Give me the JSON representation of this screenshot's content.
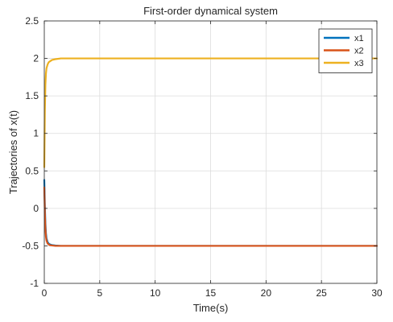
{
  "chart_data": {
    "type": "line",
    "title": "First-order dynamical system",
    "xlabel": "Time(s)",
    "ylabel": "Trajectories of x(t)",
    "xlim": [
      0,
      30
    ],
    "ylim": [
      -1,
      2.5
    ],
    "xticks": [
      0,
      5,
      10,
      15,
      20,
      25,
      30
    ],
    "yticks": [
      -1,
      -0.5,
      0,
      0.5,
      1,
      1.5,
      2,
      2.5
    ],
    "xtick_labels": [
      "0",
      "5",
      "10",
      "15",
      "20",
      "25",
      "30"
    ],
    "ytick_labels": [
      "-1",
      "-0.5",
      "0",
      "0.5",
      "1",
      "1.5",
      "2",
      "2.5"
    ],
    "grid": true,
    "legend_position": "top-right",
    "series": [
      {
        "name": "x1",
        "color": "#0072BD",
        "x": [
          0,
          0.05,
          0.1,
          0.15,
          0.2,
          0.3,
          0.4,
          0.5,
          0.7,
          1,
          1.5,
          2,
          3,
          5,
          10,
          20,
          30
        ],
        "y": [
          0.38,
          0.05,
          -0.2,
          -0.33,
          -0.4,
          -0.45,
          -0.47,
          -0.48,
          -0.49,
          -0.495,
          -0.5,
          -0.5,
          -0.5,
          -0.5,
          -0.5,
          -0.5,
          -0.5
        ]
      },
      {
        "name": "x2",
        "color": "#D95319",
        "x": [
          0,
          0.05,
          0.1,
          0.15,
          0.2,
          0.3,
          0.4,
          0.5,
          0.7,
          1,
          1.5,
          2,
          3,
          5,
          10,
          20,
          30
        ],
        "y": [
          0.28,
          -0.05,
          -0.27,
          -0.38,
          -0.43,
          -0.47,
          -0.48,
          -0.49,
          -0.495,
          -0.5,
          -0.5,
          -0.5,
          -0.5,
          -0.5,
          -0.5,
          -0.5,
          -0.5
        ]
      },
      {
        "name": "x3",
        "color": "#EDB120",
        "x": [
          0,
          0.05,
          0.1,
          0.15,
          0.2,
          0.3,
          0.4,
          0.5,
          0.7,
          1,
          1.5,
          2,
          3,
          5,
          10,
          20,
          30
        ],
        "y": [
          0.55,
          1.3,
          1.65,
          1.8,
          1.87,
          1.92,
          1.95,
          1.96,
          1.98,
          1.99,
          2.0,
          2.0,
          2.0,
          2.0,
          2.0,
          2.0,
          2.0
        ]
      }
    ]
  }
}
